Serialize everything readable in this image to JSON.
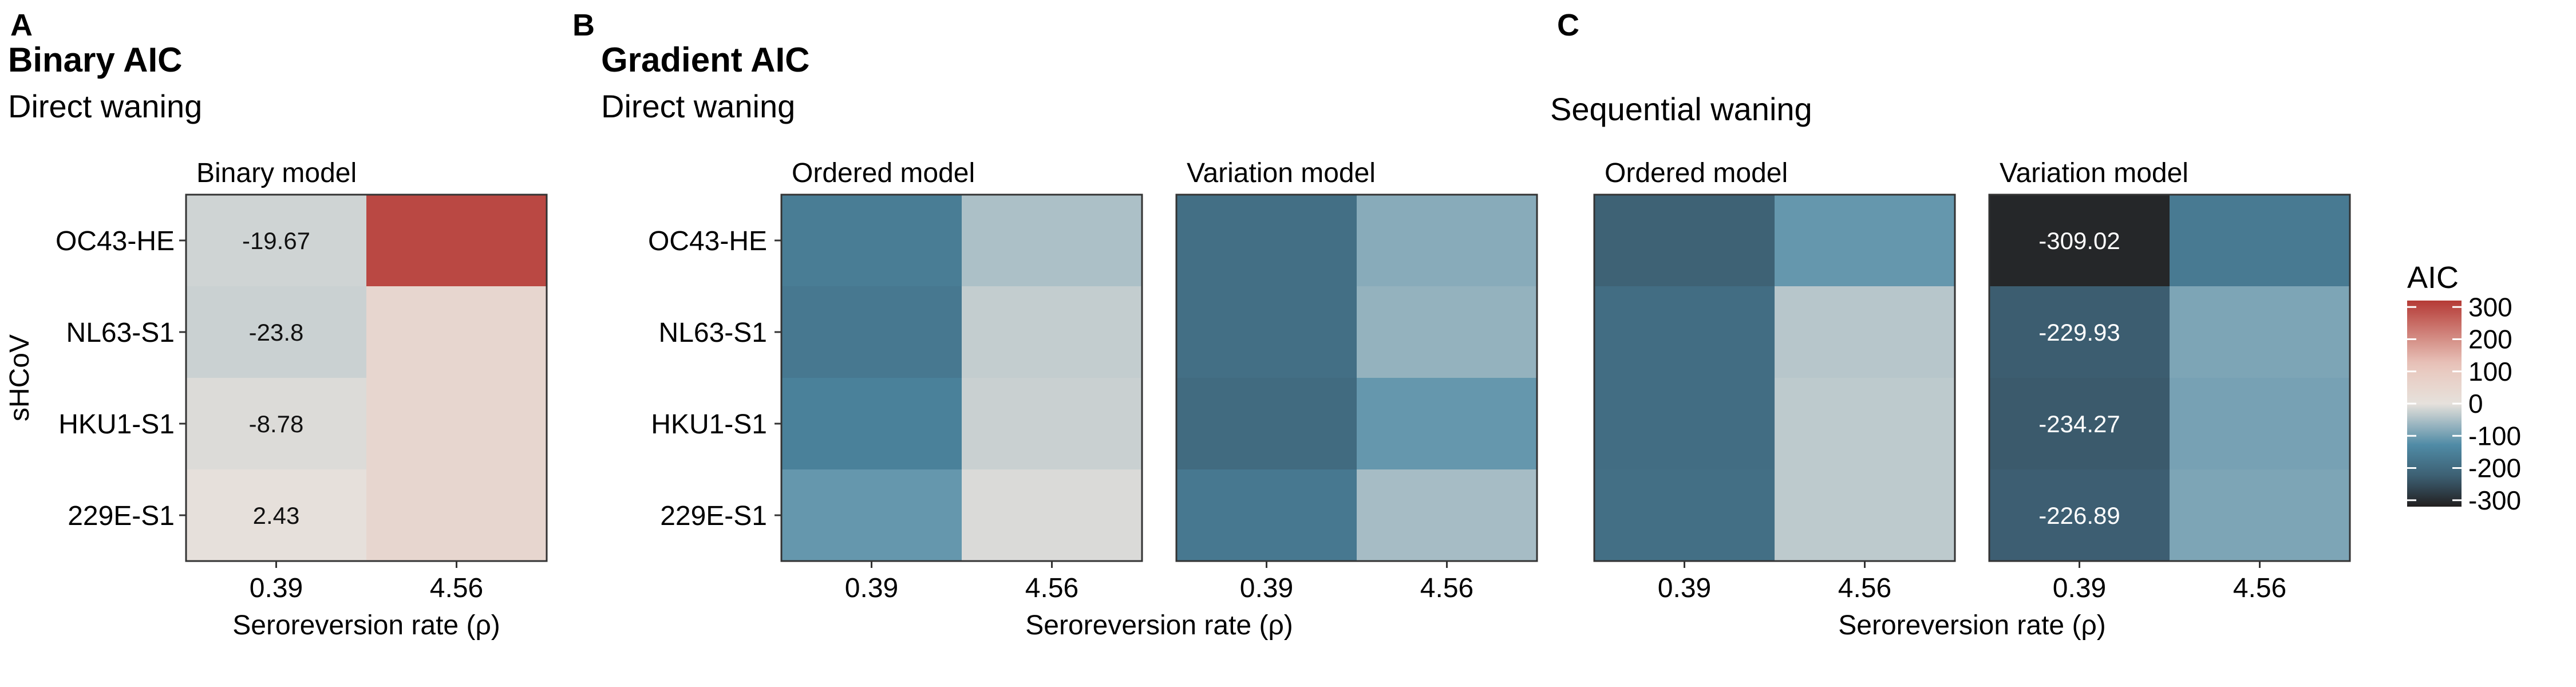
{
  "chart_data": [
    {
      "type": "heatmap",
      "panel_letter": "A",
      "title": "Binary AIC",
      "subtitle": "Direct waning",
      "ylabel": "sHCoV",
      "xlabel": "Seroreversion rate (ρ)",
      "rows": [
        "OC43-HE",
        "NL63-S1",
        "HKU1-S1",
        "229E-S1"
      ],
      "columns": [
        "0.39",
        "4.56"
      ],
      "facets": [
        {
          "name": "Binary model",
          "values": [
            [
              -19.67,
              300
            ],
            [
              -23.8,
              50
            ],
            [
              -8.78,
              50
            ],
            [
              2.43,
              50
            ]
          ],
          "labels": [
            [
              "-19.67",
              ""
            ],
            [
              "-23.8",
              ""
            ],
            [
              "-8.78",
              ""
            ],
            [
              "2.43",
              ""
            ]
          ]
        }
      ]
    },
    {
      "type": "heatmap",
      "panel_letter": "B",
      "title": "Gradient AIC",
      "subtitle": "Direct waning",
      "ylabel": "",
      "xlabel": "Seroreversion rate (ρ)",
      "rows": [
        "OC43-HE",
        "NL63-S1",
        "HKU1-S1",
        "229E-S1"
      ],
      "columns": [
        "0.39",
        "4.56"
      ],
      "facets": [
        {
          "name": "Ordered model",
          "values": [
            [
              -160,
              -50
            ],
            [
              -170,
              -30
            ],
            [
              -150,
              -25
            ],
            [
              -110,
              -10
            ]
          ],
          "labels": [
            [
              "",
              ""
            ],
            [
              "",
              ""
            ],
            [
              "",
              ""
            ],
            [
              "",
              ""
            ]
          ]
        },
        {
          "name": "Variation model",
          "values": [
            [
              -190,
              -80
            ],
            [
              -190,
              -70
            ],
            [
              -200,
              -110
            ],
            [
              -170,
              -55
            ]
          ],
          "labels": [
            [
              "",
              ""
            ],
            [
              "",
              ""
            ],
            [
              "",
              ""
            ],
            [
              "",
              ""
            ]
          ]
        }
      ]
    },
    {
      "type": "heatmap",
      "panel_letter": "C",
      "title": "",
      "subtitle": "Sequential waning",
      "ylabel": "",
      "xlabel": "Seroreversion rate (ρ)",
      "rows": [
        "OC43-HE",
        "NL63-S1",
        "HKU1-S1",
        "229E-S1"
      ],
      "columns": [
        "0.39",
        "4.56"
      ],
      "facets": [
        {
          "name": "Ordered model",
          "values": [
            [
              -220,
              -110
            ],
            [
              -195,
              -40
            ],
            [
              -195,
              -35
            ],
            [
              -190,
              -35
            ]
          ],
          "labels": [
            [
              "",
              ""
            ],
            [
              "",
              ""
            ],
            [
              "",
              ""
            ],
            [
              "",
              ""
            ]
          ]
        },
        {
          "name": "Variation model",
          "values": [
            [
              -309.02,
              -165
            ],
            [
              -229.93,
              -90
            ],
            [
              -234.27,
              -95
            ],
            [
              -226.89,
              -90
            ]
          ],
          "labels": [
            [
              "-309.02",
              ""
            ],
            [
              "-229.93",
              ""
            ],
            [
              "-234.27",
              ""
            ],
            [
              "-226.89",
              ""
            ]
          ]
        }
      ]
    }
  ],
  "legend": {
    "title": "AIC",
    "ticks": [
      "300",
      "200",
      "100",
      "0",
      "-100",
      "-200",
      "-300"
    ],
    "range": [
      -320,
      320
    ],
    "colors": {
      "low": "#221f1f",
      "mid_low": "#4e8aa5",
      "mid": "#e6e1dc",
      "mid_high": "#e9c6bc",
      "high": "#b53a35"
    }
  }
}
